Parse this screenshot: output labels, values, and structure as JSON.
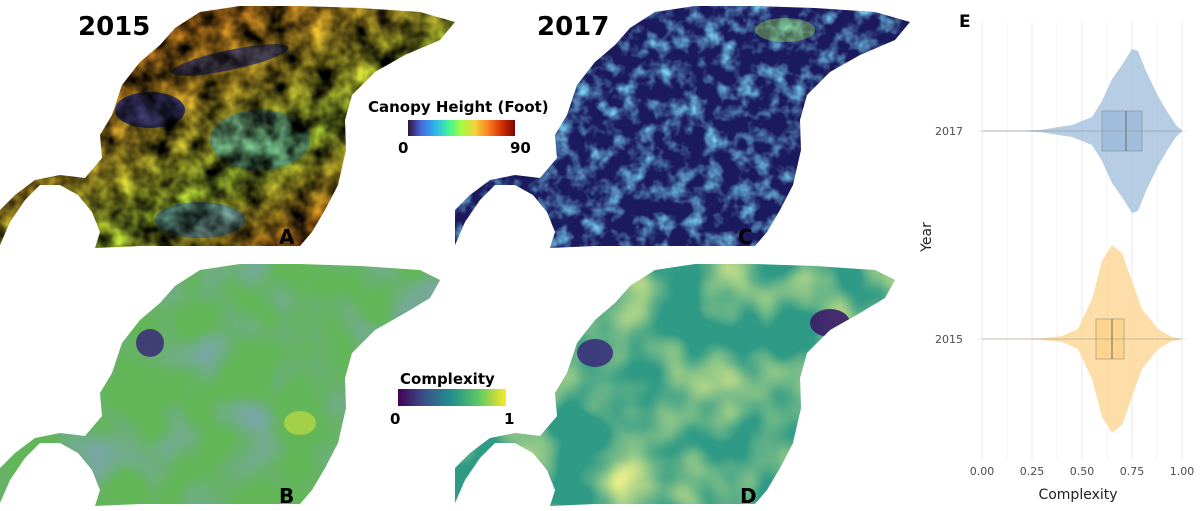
{
  "maps": {
    "year_a": "2015",
    "year_c": "2017",
    "panel_a": "A",
    "panel_b": "B",
    "panel_c": "C",
    "panel_d": "D"
  },
  "legends": {
    "canopy": {
      "title": "Canopy Height (Foot)",
      "min": "0",
      "max": "90",
      "colors": [
        "#30123b",
        "#4669e0",
        "#2fb2ee",
        "#3cf39a",
        "#a6fb40",
        "#f2d43a",
        "#fb8023",
        "#d23105",
        "#7a0403"
      ]
    },
    "complexity": {
      "title": "Complexity",
      "min": "0",
      "max": "1",
      "colors": [
        "#440154",
        "#3b528b",
        "#21918c",
        "#5ec962",
        "#fde725"
      ]
    }
  },
  "chart_data": {
    "type": "violin",
    "panel_label": "E",
    "xlabel": "Complexity",
    "ylabel": "Year",
    "xlim": [
      0,
      1
    ],
    "xticks": [
      "0.00",
      "0.25",
      "0.50",
      "0.75",
      "1.00"
    ],
    "grid": true,
    "categories": [
      "2017",
      "2015"
    ],
    "series": [
      {
        "name": "2017",
        "color": "#9dbcd9",
        "box": {
          "q1": 0.6,
          "median": 0.72,
          "q3": 0.8
        },
        "range": [
          0.0,
          1.0
        ]
      },
      {
        "name": "2015",
        "color": "#fdd38b",
        "box": {
          "q1": 0.57,
          "median": 0.65,
          "q3": 0.71
        },
        "range": [
          0.0,
          1.0
        ]
      }
    ]
  }
}
